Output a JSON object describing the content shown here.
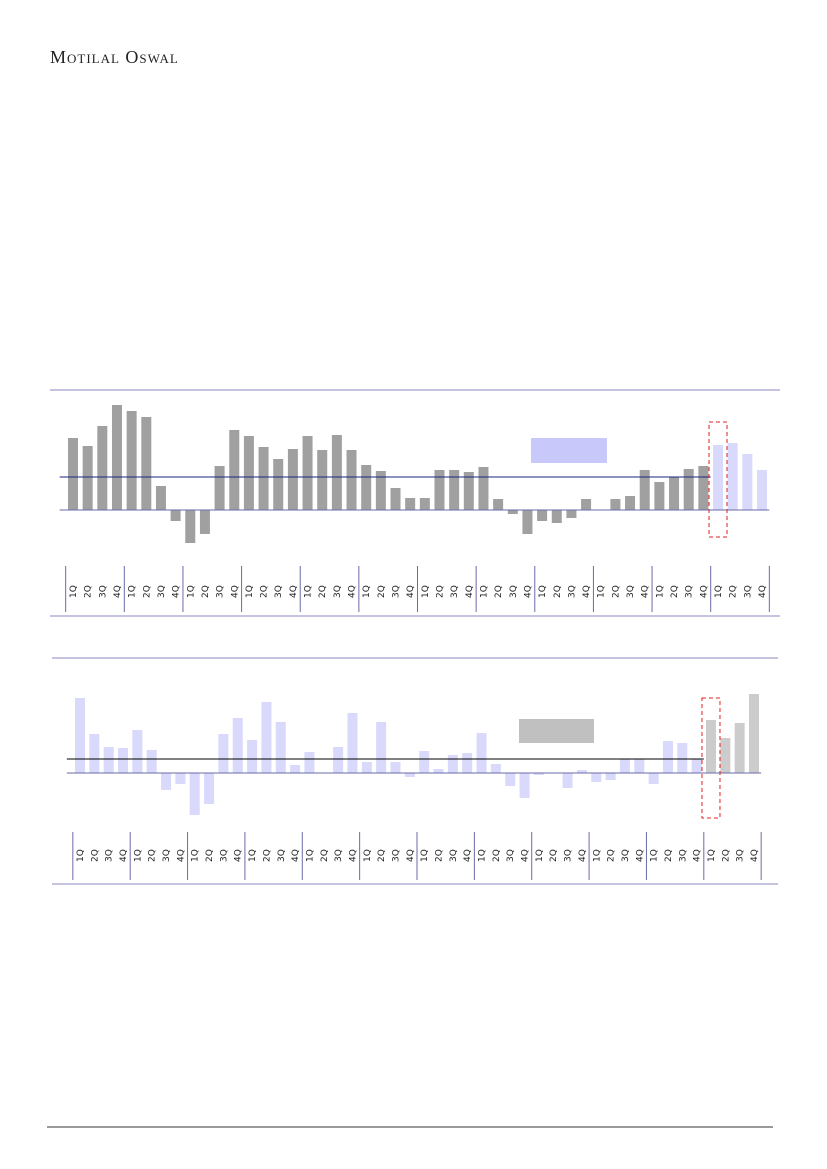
{
  "header": {
    "brand": "Motilal Oswal"
  },
  "chart_data": [
    {
      "type": "bar",
      "categories": [
        "1Q",
        "2Q",
        "3Q",
        "4Q",
        "1Q",
        "2Q",
        "3Q",
        "4Q",
        "1Q",
        "2Q",
        "3Q",
        "4Q",
        "1Q",
        "2Q",
        "3Q",
        "4Q",
        "1Q",
        "2Q",
        "3Q",
        "4Q",
        "1Q",
        "2Q",
        "3Q",
        "4Q",
        "1Q",
        "2Q",
        "3Q",
        "4Q",
        "1Q",
        "2Q",
        "3Q",
        "4Q",
        "1Q",
        "2Q",
        "3Q",
        "4Q",
        "1Q",
        "2Q",
        "3Q",
        "4Q",
        "1Q",
        "2Q",
        "3Q",
        "4Q",
        "1Q",
        "2Q",
        "3Q",
        "4Q"
      ],
      "values": [
        7.2,
        6.4,
        8.4,
        10.5,
        9.9,
        9.3,
        2.4,
        -1.1,
        -3.3,
        -2.4,
        4.4,
        8.0,
        7.4,
        6.3,
        5.1,
        6.1,
        7.4,
        6.0,
        7.5,
        6.0,
        4.5,
        3.9,
        2.2,
        1.2,
        1.2,
        4.0,
        4.0,
        3.8,
        4.3,
        1.1,
        -0.4,
        -2.4,
        -1.1,
        -1.3,
        -0.8,
        1.1,
        0,
        1.1,
        1.4,
        4.0,
        2.8,
        3.3,
        4.1,
        4.4,
        6.5,
        6.7,
        5.6,
        4.0
      ],
      "colors": [
        "#a0a0a0",
        "#a0a0a0",
        "#a0a0a0",
        "#a0a0a0",
        "#a0a0a0",
        "#a0a0a0",
        "#a0a0a0",
        "#a0a0a0",
        "#a0a0a0",
        "#a0a0a0",
        "#a0a0a0",
        "#a0a0a0",
        "#a0a0a0",
        "#a0a0a0",
        "#a0a0a0",
        "#a0a0a0",
        "#a0a0a0",
        "#a0a0a0",
        "#a0a0a0",
        "#a0a0a0",
        "#a0a0a0",
        "#a0a0a0",
        "#a0a0a0",
        "#a0a0a0",
        "#a0a0a0",
        "#a0a0a0",
        "#a0a0a0",
        "#a0a0a0",
        "#a0a0a0",
        "#a0a0a0",
        "#a0a0a0",
        "#a0a0a0",
        "#a0a0a0",
        "#a0a0a0",
        "#a0a0a0",
        "#a0a0a0",
        "#a0a0a0",
        "#a0a0a0",
        "#a0a0a0",
        "#a0a0a0",
        "#a0a0a0",
        "#a0a0a0",
        "#a0a0a0",
        "#a0a0a0",
        "#d9d9fb",
        "#d9d9fb",
        "#d9d9fb",
        "#d9d9fb"
      ],
      "reference_line": 3.3,
      "reference_color": "#1a237e",
      "highlight_index": 44,
      "ylim": [
        -4,
        12
      ]
    },
    {
      "type": "bar",
      "categories": [
        "1Q",
        "2Q",
        "3Q",
        "4Q",
        "1Q",
        "2Q",
        "3Q",
        "4Q",
        "1Q",
        "2Q",
        "3Q",
        "4Q",
        "1Q",
        "2Q",
        "3Q",
        "4Q",
        "1Q",
        "2Q",
        "3Q",
        "4Q",
        "1Q",
        "2Q",
        "3Q",
        "4Q",
        "1Q",
        "2Q",
        "3Q",
        "4Q",
        "1Q",
        "2Q",
        "3Q",
        "4Q",
        "1Q",
        "2Q",
        "3Q",
        "4Q",
        "1Q",
        "2Q",
        "3Q",
        "4Q",
        "1Q",
        "2Q",
        "3Q",
        "4Q",
        "1Q",
        "2Q",
        "3Q",
        "4Q"
      ],
      "values": [
        7.5,
        3.9,
        2.6,
        2.5,
        4.3,
        2.3,
        -1.7,
        -1.1,
        -4.2,
        -3.1,
        3.9,
        5.5,
        3.3,
        7.1,
        5.1,
        0.8,
        2.1,
        0,
        2.6,
        6.0,
        1.1,
        5.1,
        1.1,
        -0.4,
        2.2,
        0.4,
        1.8,
        2.0,
        4.0,
        0.9,
        -1.3,
        -2.5,
        -0.2,
        0,
        -1.5,
        0.3,
        -0.9,
        -0.7,
        1.4,
        1.4,
        -1.1,
        3.2,
        3.0,
        1.4,
        5.3,
        3.5,
        5.0,
        7.9
      ],
      "colors": [
        "#d9d9fb",
        "#d9d9fb",
        "#d9d9fb",
        "#d9d9fb",
        "#d9d9fb",
        "#d9d9fb",
        "#d9d9fb",
        "#d9d9fb",
        "#d9d9fb",
        "#d9d9fb",
        "#d9d9fb",
        "#d9d9fb",
        "#d9d9fb",
        "#d9d9fb",
        "#d9d9fb",
        "#d9d9fb",
        "#d9d9fb",
        "#d9d9fb",
        "#d9d9fb",
        "#d9d9fb",
        "#d9d9fb",
        "#d9d9fb",
        "#d9d9fb",
        "#d9d9fb",
        "#d9d9fb",
        "#d9d9fb",
        "#d9d9fb",
        "#d9d9fb",
        "#d9d9fb",
        "#d9d9fb",
        "#d9d9fb",
        "#d9d9fb",
        "#d9d9fb",
        "#d9d9fb",
        "#d9d9fb",
        "#d9d9fb",
        "#d9d9fb",
        "#d9d9fb",
        "#d9d9fb",
        "#d9d9fb",
        "#d9d9fb",
        "#d9d9fb",
        "#d9d9fb",
        "#d9d9fb",
        "#cccccc",
        "#cccccc",
        "#cccccc",
        "#cccccc"
      ],
      "reference_line": 1.4,
      "reference_color": "#000000",
      "highlight_index": 44,
      "ylim": [
        -5,
        9
      ]
    }
  ]
}
